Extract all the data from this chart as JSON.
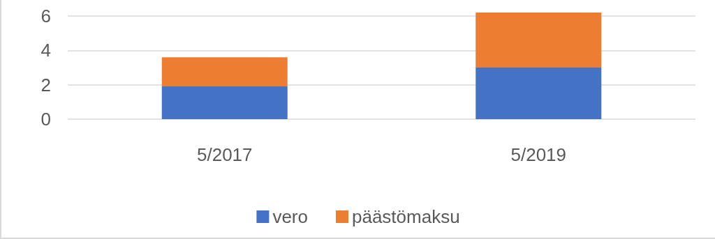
{
  "chart_data": {
    "type": "bar",
    "stacked": true,
    "categories": [
      "5/2017",
      "5/2019"
    ],
    "series": [
      {
        "name": "vero",
        "color": "#4472c4",
        "values": [
          1.9,
          3.0
        ]
      },
      {
        "name": "päästömaksu",
        "color": "#ed7d31",
        "values": [
          1.7,
          3.2
        ]
      }
    ],
    "ylim": [
      0,
      6.2
    ],
    "yticks": [
      0,
      2,
      4,
      6
    ],
    "grid": "y",
    "legend": "bottom"
  }
}
